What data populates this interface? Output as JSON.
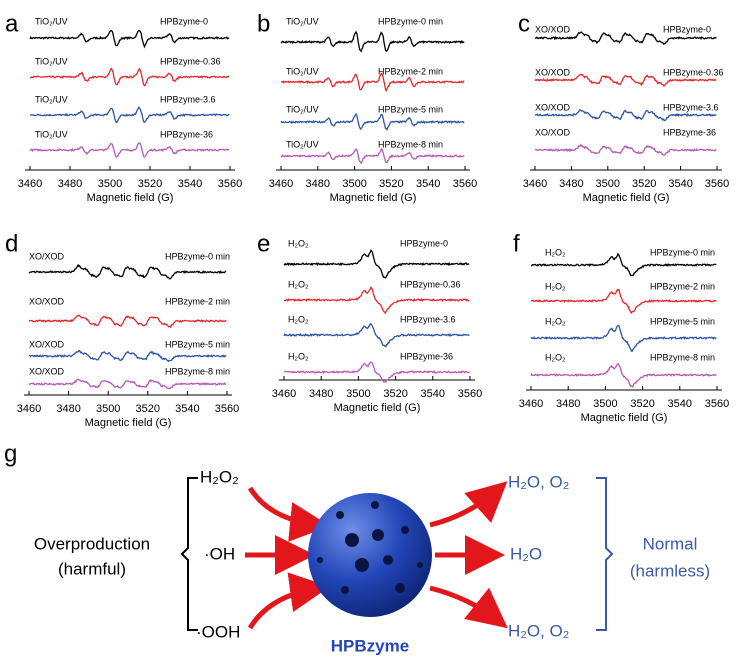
{
  "panels": [
    {
      "letter": "a",
      "xlabel": "Magnetic field (G)",
      "xlim": [
        3460,
        3560
      ],
      "xticks": [
        3460,
        3480,
        3500,
        3520,
        3540,
        3560
      ],
      "spectra": [
        {
          "left": "TiO₂/UV",
          "right": "HPBzyme-0",
          "color": "#000000"
        },
        {
          "left": "TiO₂/UV",
          "right": "HPBzyme-0.36",
          "color": "#e8262b"
        },
        {
          "left": "TiO₂/UV",
          "right": "HPBzyme-3.6",
          "color": "#2c55a6"
        },
        {
          "left": "TiO₂/UV",
          "right": "HPBzyme-36",
          "color": "#b55bb5"
        }
      ]
    },
    {
      "letter": "b",
      "xlabel": "Magnetic field (G)",
      "xlim": [
        3460,
        3560
      ],
      "xticks": [
        3460,
        3480,
        3500,
        3520,
        3540,
        3560
      ],
      "spectra": [
        {
          "left": "TiO₂/UV",
          "right": "HPBzyme-0 min",
          "color": "#000000"
        },
        {
          "left": "TiO₂/UV",
          "right": "HPBzyme-2 min",
          "color": "#e8262b"
        },
        {
          "left": "TiO₂/UV",
          "right": "HPBzyme-5 min",
          "color": "#2c55a6"
        },
        {
          "left": "TiO₂/UV",
          "right": "HPBzyme-8 min",
          "color": "#b55bb5"
        }
      ]
    },
    {
      "letter": "c",
      "xlabel": "Magnetic field (G)",
      "xlim": [
        3460,
        3560
      ],
      "xticks": [
        3460,
        3480,
        3500,
        3520,
        3540,
        3560
      ],
      "spectra": [
        {
          "left": "XO/XOD",
          "right": "HPBzyme-0",
          "color": "#000000"
        },
        {
          "left": "XO/XOD",
          "right": "HPBzyme-0.36",
          "color": "#e8262b"
        },
        {
          "left": "XO/XOD",
          "right": "HPBzyme-3.6",
          "color": "#2c55a6"
        },
        {
          "left": "XO/XOD",
          "right": "HPBzyme-36",
          "color": "#b55bb5"
        }
      ]
    },
    {
      "letter": "d",
      "xlabel": "Magnetic field (G)",
      "xlim": [
        3460,
        3560
      ],
      "xticks": [
        3460,
        3480,
        3500,
        3520,
        3540,
        3560
      ],
      "spectra": [
        {
          "left": "XO/XOD",
          "right": "HPBzyme-0 min",
          "color": "#000000"
        },
        {
          "left": "XO/XOD",
          "right": "HPBzyme-2 min",
          "color": "#e8262b"
        },
        {
          "left": "XO/XOD",
          "right": "HPBzyme-5 min",
          "color": "#2c55a6"
        },
        {
          "left": "XO/XOD",
          "right": "HPBzyme-8 min",
          "color": "#b55bb5"
        }
      ]
    },
    {
      "letter": "e",
      "xlabel": "Magnetic field (G)",
      "xlim": [
        3460,
        3560
      ],
      "xticks": [
        3460,
        3480,
        3500,
        3520,
        3540,
        3560
      ],
      "spectra": [
        {
          "left": "H₂O₂",
          "right": "HPBzyme-0",
          "color": "#000000"
        },
        {
          "left": "H₂O₂",
          "right": "HPBzyme-0.36",
          "color": "#e8262b"
        },
        {
          "left": "H₂O₂",
          "right": "HPBzyme-3.6",
          "color": "#2c55a6"
        },
        {
          "left": "H₂O₂",
          "right": "HPBzyme-36",
          "color": "#b55bb5"
        }
      ]
    },
    {
      "letter": "f",
      "xlabel": "Magnetic field (G)",
      "xlim": [
        3460,
        3560
      ],
      "xticks": [
        3460,
        3480,
        3500,
        3520,
        3540,
        3560
      ],
      "spectra": [
        {
          "left": "H₂O₂",
          "right": "HPBzyme-0 min",
          "color": "#000000"
        },
        {
          "left": "H₂O₂",
          "right": "HPBzyme-2 min",
          "color": "#e8262b"
        },
        {
          "left": "H₂O₂",
          "right": "HPBzyme-5 min",
          "color": "#2c55a6"
        },
        {
          "left": "H₂O₂",
          "right": "HPBzyme-8 min",
          "color": "#b55bb5"
        }
      ]
    }
  ],
  "scheme": {
    "letter": "g",
    "inputs": [
      "H₂O₂",
      "·OH",
      "·OOH"
    ],
    "source": [
      "Overproduction",
      "(harmful)"
    ],
    "outputs": [
      "H₂O, O₂",
      "H₂O",
      "H₂O, O₂"
    ],
    "result": [
      "Normal",
      "(harmless)"
    ],
    "catalyst": "HPBzyme"
  }
}
